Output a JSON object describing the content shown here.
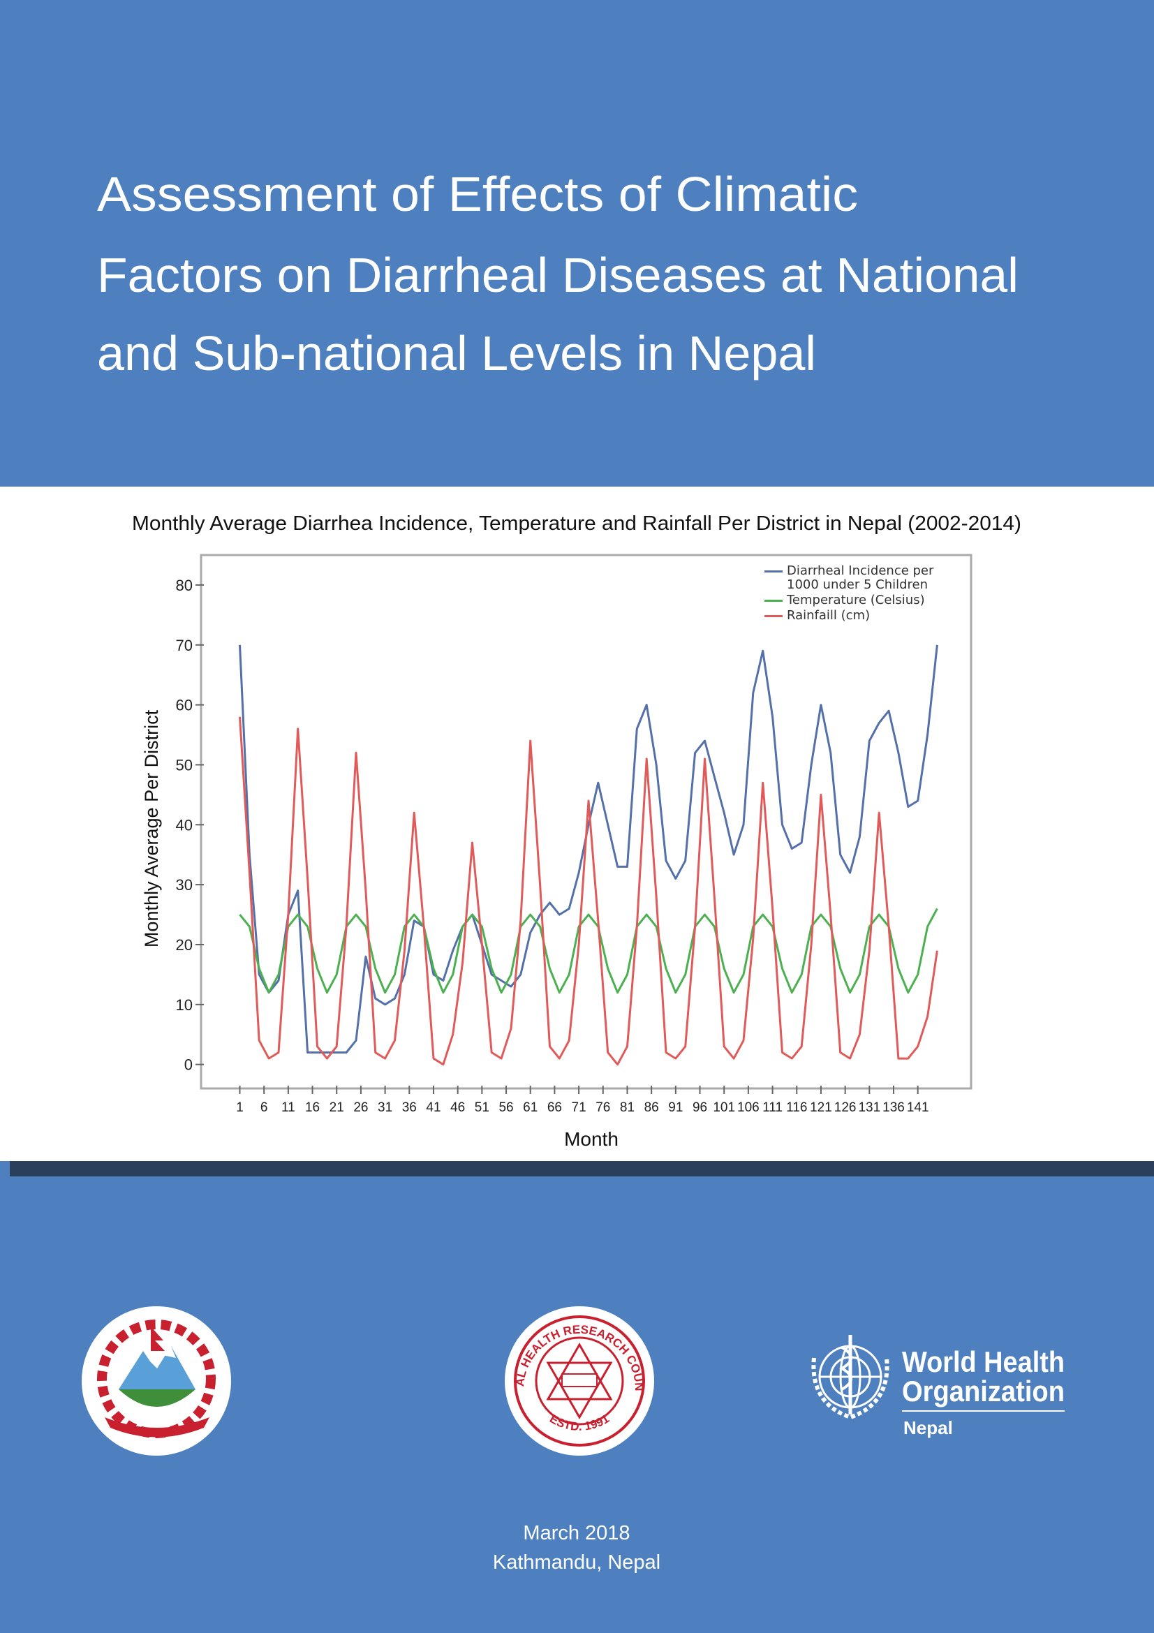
{
  "title_lines": [
    "Assessment of Effects of Climatic",
    "Factors on Diarrheal Diseases at National",
    "and Sub-national Levels in Nepal"
  ],
  "chart_data": {
    "type": "line",
    "title": "Monthly Average Diarrhea Incidence, Temperature and Rainfall Per District in Nepal (2002-2014)",
    "x_label": "Month",
    "y_label": "Monthly Average Per District",
    "x": [
      1,
      3,
      5,
      7,
      9,
      11,
      13,
      15,
      17,
      19,
      21,
      23,
      25,
      27,
      29,
      31,
      33,
      35,
      37,
      39,
      41,
      43,
      45,
      47,
      49,
      51,
      53,
      55,
      57,
      59,
      61,
      63,
      65,
      67,
      69,
      71,
      73,
      75,
      77,
      79,
      81,
      83,
      85,
      87,
      89,
      91,
      93,
      95,
      97,
      99,
      101,
      103,
      105,
      107,
      109,
      111,
      113,
      115,
      117,
      119,
      121,
      123,
      125,
      127,
      129,
      131,
      133,
      135,
      137,
      139,
      141,
      143,
      145
    ],
    "xlim": [
      -7,
      152
    ],
    "xticks": [
      1,
      6,
      11,
      16,
      21,
      26,
      31,
      36,
      41,
      46,
      51,
      56,
      61,
      66,
      71,
      76,
      81,
      86,
      91,
      96,
      101,
      106,
      111,
      116,
      121,
      126,
      131,
      136,
      141
    ],
    "ylim": [
      -4,
      85
    ],
    "yticks": [
      0,
      10,
      20,
      30,
      40,
      50,
      60,
      70,
      80
    ],
    "legend": "upper right",
    "series": [
      {
        "name": "Diarrheal Incidence per 1000 under 5 Children",
        "color": "#5470a8",
        "values": [
          70,
          35,
          15,
          12,
          14,
          25,
          29,
          2,
          2,
          2,
          2,
          2,
          4,
          18,
          11,
          10,
          11,
          15,
          24,
          23,
          15,
          14,
          19,
          23,
          25,
          20,
          15,
          14,
          13,
          15,
          22,
          25,
          27,
          25,
          26,
          32,
          40,
          47,
          40,
          33,
          33,
          56,
          60,
          50,
          34,
          31,
          34,
          52,
          54,
          48,
          42,
          35,
          40,
          62,
          69,
          58,
          40,
          36,
          37,
          50,
          60,
          52,
          35,
          32,
          38,
          54,
          57,
          59,
          52,
          43,
          44,
          55,
          70
        ]
      },
      {
        "name": "Temperature (Celsius)",
        "color": "#4caf50",
        "values": [
          25,
          23,
          16,
          12,
          15,
          23,
          25,
          23,
          16,
          12,
          15,
          23,
          25,
          23,
          16,
          12,
          15,
          23,
          25,
          23,
          16,
          12,
          15,
          23,
          25,
          23,
          16,
          12,
          15,
          23,
          25,
          23,
          16,
          12,
          15,
          23,
          25,
          23,
          16,
          12,
          15,
          23,
          25,
          23,
          16,
          12,
          15,
          23,
          25,
          23,
          16,
          12,
          15,
          23,
          25,
          23,
          16,
          12,
          15,
          23,
          25,
          23,
          16,
          12,
          15,
          23,
          25,
          23,
          16,
          12,
          15,
          23,
          26
        ]
      },
      {
        "name": "Rainfaill (cm)",
        "color": "#e05a5a",
        "values": [
          58,
          32,
          4,
          1,
          2,
          25,
          56,
          31,
          3,
          1,
          3,
          23,
          52,
          29,
          2,
          1,
          4,
          19,
          42,
          23,
          1,
          0,
          5,
          17,
          37,
          20,
          2,
          1,
          6,
          24,
          54,
          30,
          3,
          1,
          4,
          20,
          44,
          24,
          2,
          0,
          3,
          23,
          51,
          28,
          2,
          1,
          3,
          23,
          51,
          28,
          3,
          1,
          4,
          21,
          47,
          26,
          2,
          1,
          3,
          20,
          45,
          25,
          2,
          1,
          5,
          19,
          42,
          23,
          1,
          1,
          3,
          8,
          19
        ]
      }
    ]
  },
  "nhrc_logo": {
    "ring": "NEPAL HEALTH RESEARCH COUNCIL",
    "estd": "ESTD. 1991"
  },
  "who_logo": {
    "line1": "World Health",
    "line2": "Organization",
    "country": "Nepal"
  },
  "footer": {
    "date": "March 2018",
    "place": "Kathmandu, Nepal"
  }
}
